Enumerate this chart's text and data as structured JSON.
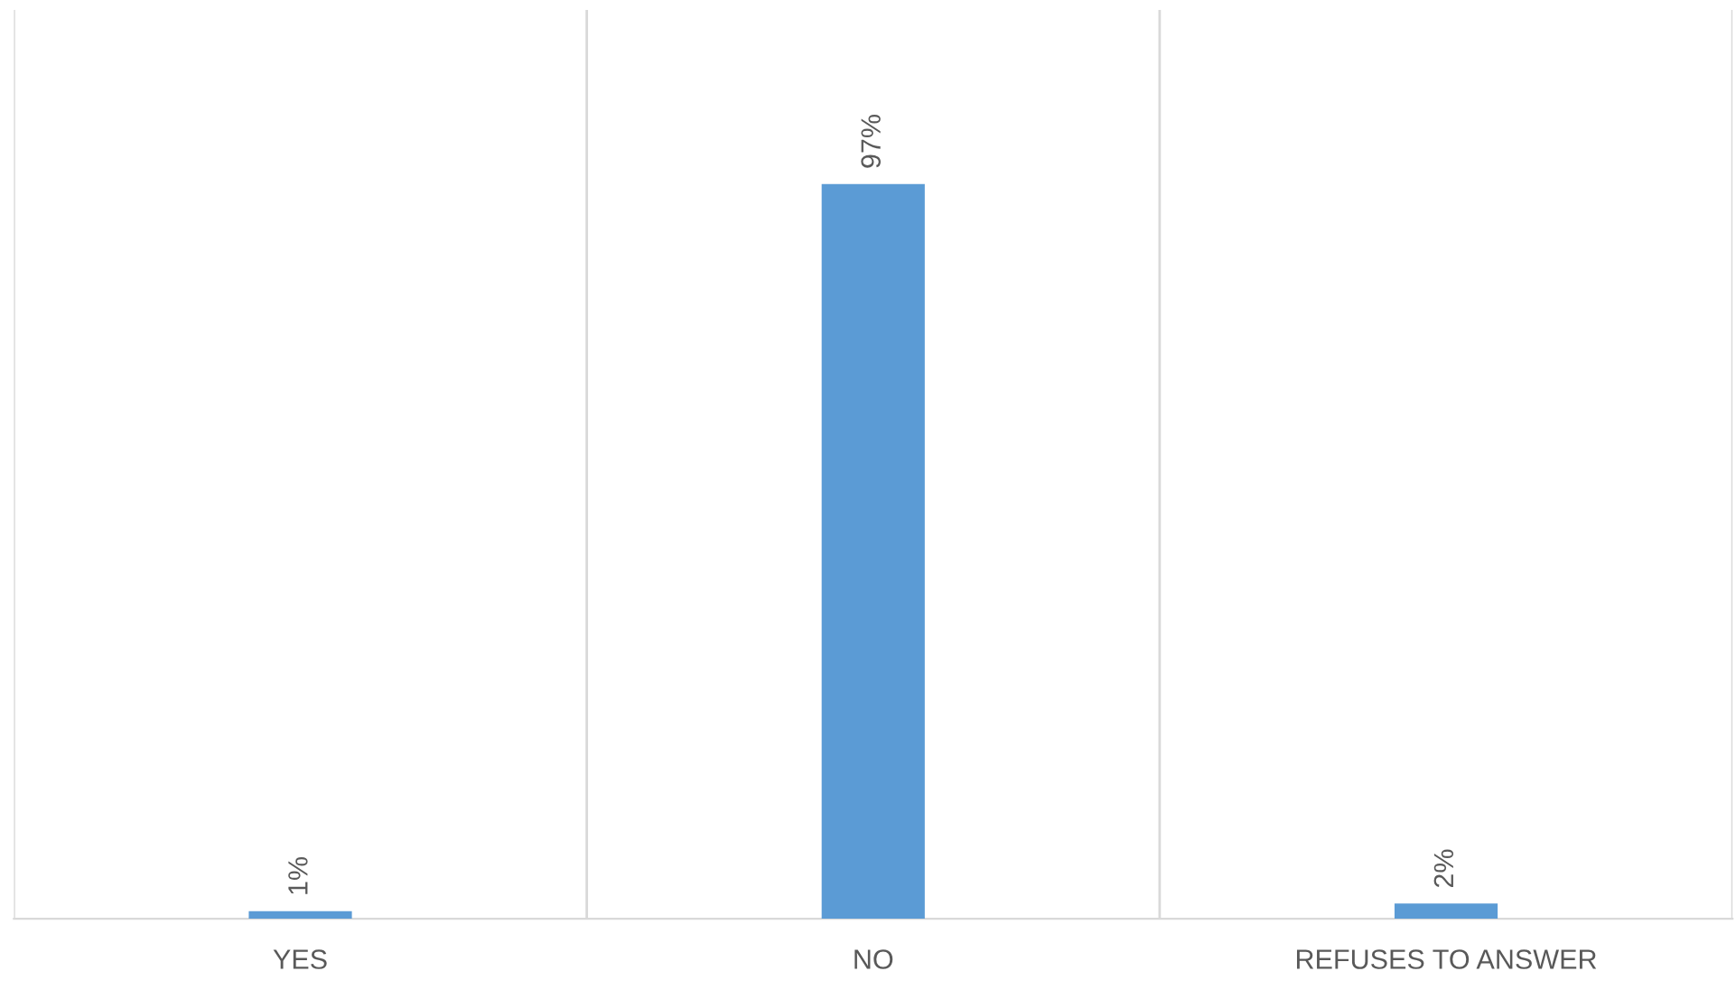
{
  "chart_data": {
    "type": "bar",
    "categories": [
      "YES",
      "NO",
      "REFUSES TO ANSWER"
    ],
    "values": [
      1,
      97,
      2
    ],
    "value_labels": [
      "1%",
      "97%",
      "2%"
    ],
    "color": "#5b9bd5",
    "ylim": [
      0,
      120
    ],
    "grid": "x",
    "tick_labels": "x"
  }
}
